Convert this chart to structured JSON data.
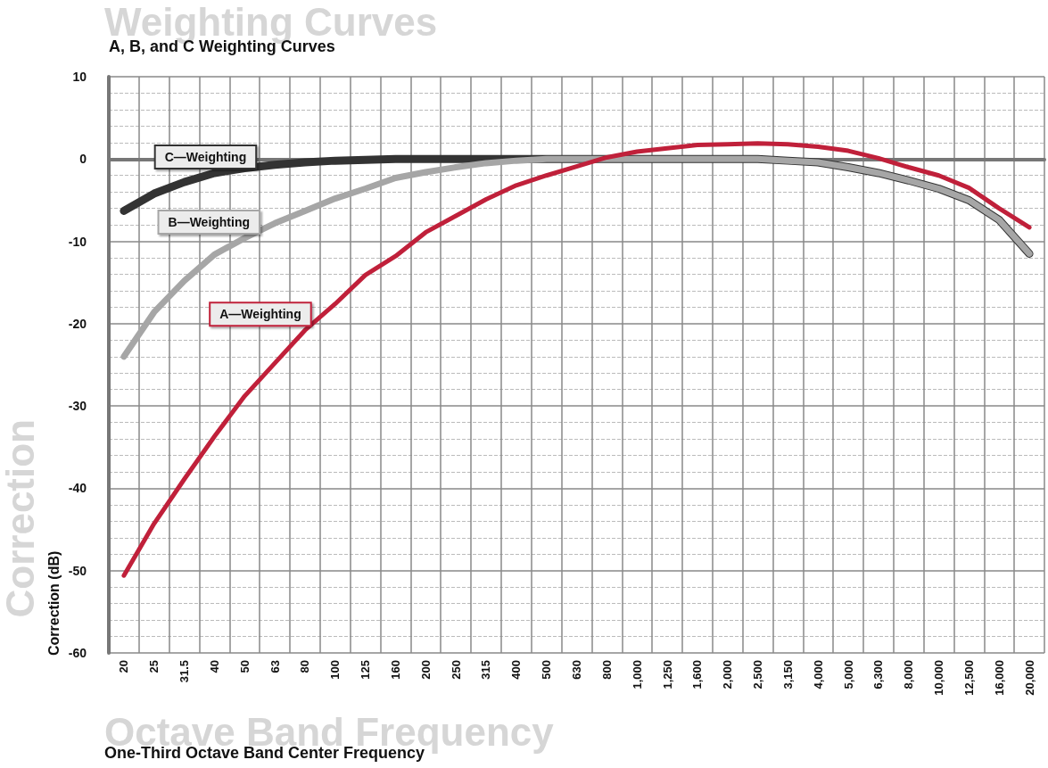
{
  "chart_data": {
    "type": "line",
    "title": "A, B, and C Weighting Curves",
    "xlabel": "One-Third Octave Band Center Frequency",
    "ylabel": "Correction (dB)",
    "annotations": [
      "Weighting Curves",
      "Correction",
      "Octave Band Frequency"
    ],
    "categories": [
      "20",
      "25",
      "31.5",
      "40",
      "50",
      "63",
      "80",
      "100",
      "125",
      "160",
      "200",
      "250",
      "315",
      "400",
      "500",
      "630",
      "800",
      "1,000",
      "1,250",
      "1,600",
      "2,000",
      "2,500",
      "3,150",
      "4,000",
      "5,000",
      "6,300",
      "8,000",
      "10,000",
      "12,500",
      "16,000",
      "20,000"
    ],
    "series": [
      {
        "name": "C—Weighting",
        "color": "#333333",
        "values": [
          -6.3,
          -4.2,
          -2.8,
          -1.7,
          -1.1,
          -0.7,
          -0.4,
          -0.2,
          -0.1,
          0,
          0,
          0,
          0,
          0,
          0,
          0,
          0,
          0,
          0,
          0,
          0,
          0,
          -0.2,
          -0.4,
          -1.0,
          -1.7,
          -2.6,
          -3.6,
          -5.0,
          -7.4,
          -11.5
        ]
      },
      {
        "name": "B—Weighting",
        "color": "#a6a6a6",
        "values": [
          -24,
          -18.6,
          -14.8,
          -11.6,
          -9.6,
          -7.8,
          -6.3,
          -4.8,
          -3.6,
          -2.3,
          -1.6,
          -1.0,
          -0.5,
          -0.2,
          0,
          0,
          0,
          0,
          0,
          0,
          0,
          0,
          -0.2,
          -0.4,
          -1.0,
          -1.7,
          -2.6,
          -3.6,
          -5.0,
          -7.4,
          -11.5
        ]
      },
      {
        "name": "A—Weighting",
        "color": "#c0203a",
        "values": [
          -50.6,
          -44.3,
          -38.9,
          -33.7,
          -28.8,
          -24.8,
          -20.8,
          -17.6,
          -14.1,
          -11.8,
          -8.9,
          -6.9,
          -4.9,
          -3.2,
          -2.0,
          -0.9,
          0.2,
          0.9,
          1.3,
          1.7,
          1.8,
          1.9,
          1.8,
          1.5,
          1.0,
          0.1,
          -1.0,
          -2.0,
          -3.5,
          -6.0,
          -8.3
        ]
      }
    ],
    "ylim": [
      -60,
      10
    ],
    "yticks": [
      -60,
      -50,
      -40,
      -30,
      -20,
      -10,
      0,
      10
    ],
    "grid": true,
    "legend": false,
    "marker": "none",
    "line_style": "solid"
  }
}
